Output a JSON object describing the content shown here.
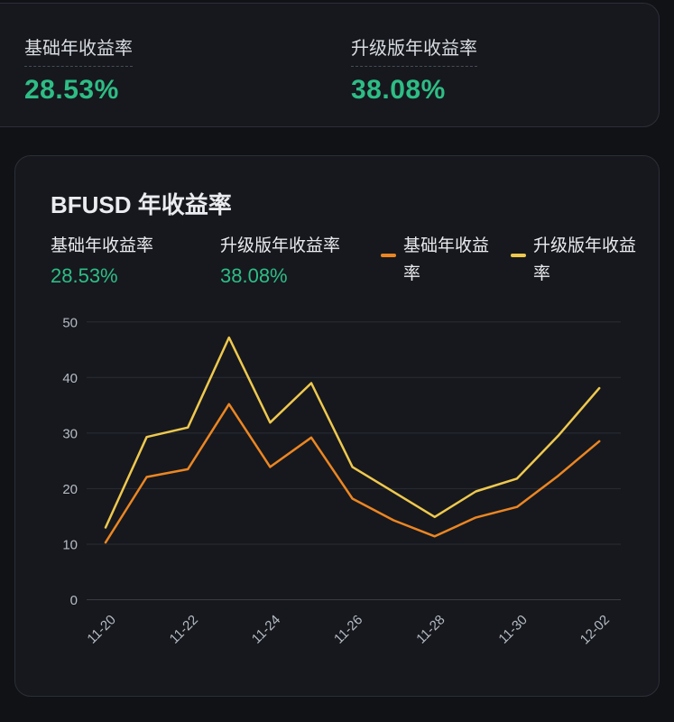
{
  "summary": {
    "stats": [
      {
        "label": "基础年收益率",
        "value": "28.53%"
      },
      {
        "label": "升级版年收益率",
        "value": "38.08%"
      }
    ]
  },
  "card": {
    "title": "BFUSD 年收益率",
    "stats": [
      {
        "label": "基础年收益率",
        "value": "28.53%"
      },
      {
        "label": "升级版年收益率",
        "value": "38.08%"
      }
    ],
    "legend": [
      {
        "label": "基础年收益率",
        "color": "#EC8622"
      },
      {
        "label": "升级版年收益率",
        "color": "#EFC84E"
      }
    ]
  },
  "chart_data": {
    "type": "line",
    "title": "BFUSD 年收益率",
    "x": [
      "11-20",
      "11-21",
      "11-22",
      "11-23",
      "11-24",
      "11-25",
      "11-26",
      "11-27",
      "11-28",
      "11-29",
      "11-30",
      "12-01",
      "12-02"
    ],
    "x_tick_labels": [
      "11-20",
      "11-22",
      "11-24",
      "11-26",
      "11-28",
      "11-30",
      "12-02"
    ],
    "y_ticks": [
      0,
      10,
      20,
      30,
      40,
      50
    ],
    "ylim": [
      0,
      50
    ],
    "grid": true,
    "legend_position": "top-right",
    "series": [
      {
        "name": "基础年收益率",
        "color": "#EC8622",
        "values": [
          10.3,
          22.1,
          23.5,
          35.2,
          23.9,
          29.2,
          18.2,
          14.3,
          11.4,
          14.8,
          16.7,
          22.3,
          28.53
        ]
      },
      {
        "name": "升级版年收益率",
        "color": "#EFC84E",
        "values": [
          13.0,
          29.3,
          31.0,
          47.2,
          31.9,
          39.0,
          23.9,
          19.4,
          14.9,
          19.5,
          21.8,
          29.5,
          38.08
        ]
      }
    ]
  },
  "colors": {
    "accent_green": "#2EBD85",
    "axis_text": "#B7BCC4",
    "grid_line": "#2A2D34",
    "zero_line": "#383C44"
  }
}
